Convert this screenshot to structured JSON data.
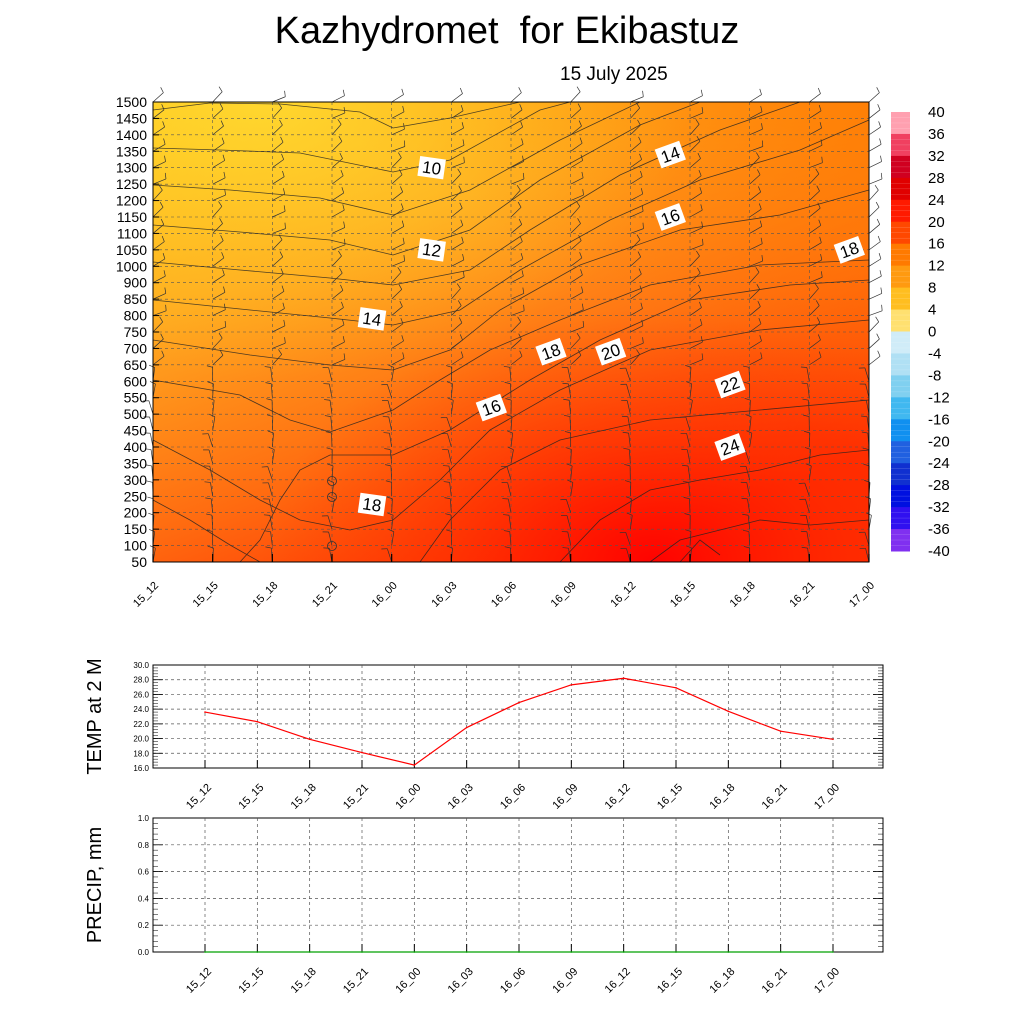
{
  "header": {
    "title": "Kazhydromet  for Ekibastuz",
    "date": "15 July 2025"
  },
  "time_labels": [
    "15_12",
    "15_15",
    "15_18",
    "15_21",
    "16_00",
    "16_03",
    "16_06",
    "16_09",
    "16_12",
    "16_15",
    "16_18",
    "16_21",
    "17_00"
  ],
  "colors": {
    "temp_line": "#ff0000",
    "precip_line": "#00a000",
    "warm_fill_low": "#ff1a00",
    "warm_fill_high": "#ffcc20"
  },
  "chart_data": [
    {
      "type": "heatmap",
      "title": "Kazhydromet  for Ekibastuz",
      "subtitle": "15 July 2025",
      "x": [
        "15_12",
        "15_15",
        "15_18",
        "15_21",
        "16_00",
        "16_03",
        "16_06",
        "16_09",
        "16_12",
        "16_15",
        "16_18",
        "16_21",
        "17_00"
      ],
      "y_levels": [
        50,
        100,
        150,
        200,
        250,
        300,
        350,
        400,
        450,
        500,
        550,
        600,
        650,
        700,
        750,
        800,
        850,
        900,
        1000,
        1050,
        1100,
        1150,
        1200,
        1250,
        1300,
        1350,
        1400,
        1450,
        1500
      ],
      "colorbar": {
        "levels": [
          40,
          36,
          32,
          28,
          24,
          20,
          16,
          12,
          8,
          4,
          0,
          -4,
          -8,
          -12,
          -16,
          -20,
          -24,
          -28,
          -32,
          -36,
          -40
        ]
      },
      "contour_labels": [
        {
          "text": "10",
          "x": "16_00",
          "y": 1300
        },
        {
          "text": "12",
          "x": "16_00",
          "y": 1050
        },
        {
          "text": "14",
          "x": "15_21",
          "y": 790
        },
        {
          "text": "14",
          "x": "16_12",
          "y": 1340
        },
        {
          "text": "16",
          "x": "16_12",
          "y": 1150
        },
        {
          "text": "16",
          "x": "16_03",
          "y": 520
        },
        {
          "text": "18",
          "x": "16_06",
          "y": 690
        },
        {
          "text": "18",
          "x": "16_21",
          "y": 1050
        },
        {
          "text": "18",
          "x": "15_21",
          "y": 225
        },
        {
          "text": "20",
          "x": "16_09",
          "y": 690
        },
        {
          "text": "22",
          "x": "16_15",
          "y": 590
        },
        {
          "text": "24",
          "x": "16_15",
          "y": 400
        }
      ],
      "grid": true
    },
    {
      "type": "line",
      "ylabel": "TEMP at 2 M",
      "x": [
        "15_12",
        "15_15",
        "15_18",
        "15_21",
        "16_00",
        "16_03",
        "16_06",
        "16_09",
        "16_12",
        "16_15",
        "16_18",
        "16_21",
        "17_00"
      ],
      "series": [
        {
          "values": [
            23.6,
            22.3,
            19.9,
            18.1,
            16.4,
            21.5,
            24.9,
            27.3,
            28.2,
            26.9,
            23.7,
            21.0,
            19.9
          ]
        }
      ],
      "ylim": [
        16.0,
        30.0
      ],
      "yticks": [
        "16.0",
        "18.0",
        "20.0",
        "22.0",
        "24.0",
        "26.0",
        "28.0",
        "30.0"
      ],
      "grid": true
    },
    {
      "type": "line",
      "ylabel": "PRECIP, mm",
      "x": [
        "15_12",
        "15_15",
        "15_18",
        "15_21",
        "16_00",
        "16_03",
        "16_06",
        "16_09",
        "16_12",
        "16_15",
        "16_18",
        "16_21",
        "17_00"
      ],
      "series": [
        {
          "values": [
            0,
            0,
            0,
            0,
            0,
            0,
            0,
            0,
            0,
            0,
            0,
            0,
            0
          ]
        }
      ],
      "ylim": [
        0.0,
        1.0
      ],
      "yticks": [
        "0.0",
        "0.2",
        "0.4",
        "0.6",
        "0.8",
        "1.0"
      ],
      "grid": true
    }
  ]
}
